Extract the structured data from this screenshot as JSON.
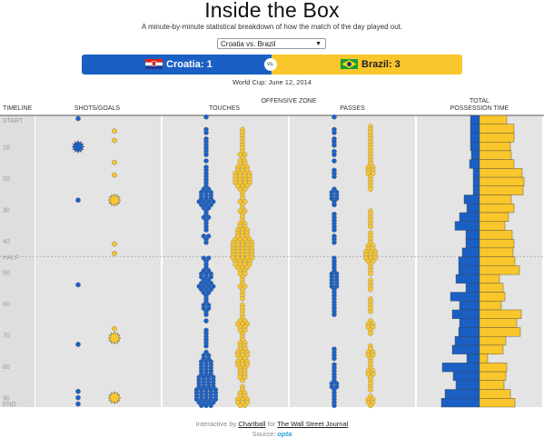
{
  "header": {
    "title": "Inside the Box",
    "subtitle": "A minute-by-minute statistical breakdown of how the match of the day played out.",
    "match_select": "Croatia vs. Brazil",
    "home": {
      "label": "Croatia: 1",
      "color": "#1a5fc4"
    },
    "away": {
      "label": "Brazil: 3",
      "color": "#f9c62b"
    },
    "vs": "vs.",
    "date": "World Cup: June 12, 2014"
  },
  "footer": {
    "prefix": "Interactive by ",
    "credit": "Chartball",
    "middle": " for ",
    "publisher": "The Wall Street Journal",
    "source_label": "Source: ",
    "source": "opta"
  },
  "chart_data": {
    "type": "scatter",
    "group_label": "OFFENSIVE ZONE",
    "columns": [
      "TIMELINE",
      "SHOTS/GOALS",
      "TOUCHES",
      "PASSES",
      "TOTAL POSSESSION TIME"
    ],
    "time_labels": [
      "START",
      "10",
      "20",
      "30",
      "40",
      "HALF",
      "50",
      "60",
      "70",
      "80",
      "90",
      "END"
    ],
    "time_label_minutes": [
      0,
      10,
      20,
      30,
      40,
      45,
      50,
      60,
      70,
      80,
      90,
      93
    ],
    "minute_range": [
      0,
      93
    ],
    "shots": {
      "croatia": [
        {
          "minute": 1,
          "goal": false
        },
        {
          "minute": 10,
          "goal": true
        },
        {
          "minute": 27,
          "goal": false
        },
        {
          "minute": 54,
          "goal": false
        },
        {
          "minute": 73,
          "goal": false
        },
        {
          "minute": 88,
          "goal": false
        },
        {
          "minute": 90,
          "goal": false
        },
        {
          "minute": 92,
          "goal": false
        }
      ],
      "brazil": [
        {
          "minute": 5,
          "goal": false
        },
        {
          "minute": 8,
          "goal": false
        },
        {
          "minute": 15,
          "goal": false
        },
        {
          "minute": 19,
          "goal": false
        },
        {
          "minute": 27,
          "goal": true
        },
        {
          "minute": 41,
          "goal": false
        },
        {
          "minute": 44,
          "goal": false
        },
        {
          "minute": 68,
          "goal": false
        },
        {
          "minute": 71,
          "goal": true
        },
        {
          "minute": 90,
          "goal": true
        }
      ]
    },
    "touches_per_minute": {
      "croatia": [
        1,
        0,
        0,
        0,
        1,
        1,
        0,
        1,
        1,
        1,
        1,
        1,
        1,
        0,
        1,
        0,
        1,
        1,
        1,
        1,
        1,
        1,
        1,
        2,
        3,
        3,
        3,
        4,
        3,
        2,
        1,
        1,
        2,
        1,
        1,
        1,
        1,
        0,
        2,
        1,
        1,
        0,
        0,
        0,
        0,
        2,
        1,
        1,
        1,
        2,
        3,
        3,
        2,
        3,
        4,
        3,
        2,
        1,
        1,
        1,
        2,
        2,
        1,
        1,
        0,
        1,
        0,
        0,
        1,
        1,
        1,
        1,
        1,
        1,
        0,
        1,
        2,
        2,
        3,
        3,
        3,
        3,
        3,
        4,
        4,
        4,
        4,
        5,
        5,
        5,
        5,
        4,
        3
      ],
      "brazil": [
        0,
        0,
        0,
        0,
        1,
        1,
        1,
        1,
        1,
        1,
        1,
        1,
        2,
        1,
        2,
        2,
        3,
        3,
        4,
        4,
        4,
        4,
        3,
        2,
        1,
        1,
        1,
        2,
        1,
        1,
        2,
        1,
        1,
        1,
        2,
        2,
        3,
        3,
        3,
        4,
        5,
        5,
        5,
        5,
        5,
        5,
        4,
        4,
        3,
        2,
        2,
        1,
        1,
        1,
        2,
        1,
        1,
        1,
        1,
        0,
        1,
        1,
        1,
        1,
        1,
        2,
        3,
        2,
        2,
        1,
        1,
        1,
        2,
        2,
        2,
        3,
        3,
        2,
        3,
        3,
        2,
        2,
        2,
        2,
        1,
        0,
        1,
        1,
        2,
        2,
        3,
        3,
        2
      ]
    },
    "passes_per_minute": {
      "croatia": [
        1,
        0,
        0,
        0,
        1,
        1,
        0,
        1,
        1,
        1,
        0,
        1,
        1,
        0,
        1,
        0,
        0,
        1,
        1,
        1,
        0,
        0,
        0,
        1,
        2,
        2,
        2,
        1,
        1,
        0,
        0,
        1,
        1,
        1,
        1,
        1,
        1,
        0,
        1,
        1,
        1,
        0,
        0,
        0,
        0,
        1,
        1,
        1,
        1,
        1,
        2,
        2,
        2,
        2,
        2,
        1,
        1,
        1,
        1,
        1,
        1,
        1,
        1,
        1,
        0,
        0,
        0,
        0,
        0,
        0,
        0,
        0,
        0,
        0,
        1,
        1,
        1,
        1,
        0,
        1,
        1,
        1,
        1,
        1,
        1,
        2,
        2,
        1,
        1,
        1,
        1,
        1,
        1
      ],
      "brazil": [
        0,
        0,
        0,
        1,
        1,
        1,
        1,
        1,
        1,
        1,
        1,
        1,
        1,
        1,
        1,
        1,
        2,
        2,
        2,
        1,
        1,
        1,
        1,
        1,
        0,
        0,
        0,
        0,
        0,
        0,
        1,
        1,
        1,
        1,
        1,
        1,
        0,
        1,
        1,
        1,
        1,
        2,
        2,
        3,
        3,
        3,
        2,
        1,
        1,
        1,
        1,
        0,
        1,
        1,
        1,
        1,
        0,
        0,
        1,
        1,
        1,
        1,
        1,
        0,
        0,
        1,
        2,
        2,
        1,
        1,
        0,
        0,
        0,
        1,
        1,
        2,
        2,
        1,
        1,
        1,
        1,
        2,
        2,
        1,
        1,
        1,
        1,
        1,
        0,
        1,
        2,
        2,
        1
      ]
    },
    "possession": {
      "croatia": [
        10,
        10,
        10,
        10,
        9,
        11,
        7,
        7,
        7,
        17,
        14,
        22,
        27,
        15,
        15,
        19,
        23,
        23,
        26,
        15,
        32,
        22,
        30,
        22,
        23,
        27,
        30,
        14,
        41,
        29,
        26,
        38,
        42
      ],
      "brazil": [
        30,
        38,
        38,
        34,
        35,
        38,
        47,
        49,
        48,
        35,
        38,
        32,
        28,
        36,
        38,
        37,
        39,
        44,
        22,
        26,
        28,
        24,
        46,
        41,
        45,
        29,
        26,
        9,
        30,
        29,
        27,
        34,
        39
      ]
    }
  }
}
